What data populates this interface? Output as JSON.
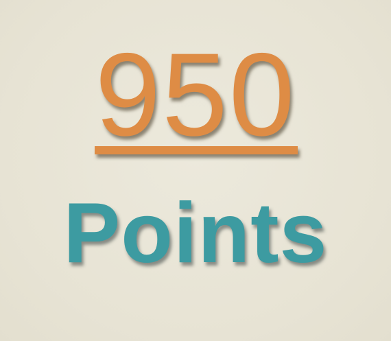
{
  "score": {
    "value": "950",
    "label": "Points"
  },
  "colors": {
    "background": "#e9e6d8",
    "score": "#de8c45",
    "label": "#3d9ba1"
  }
}
